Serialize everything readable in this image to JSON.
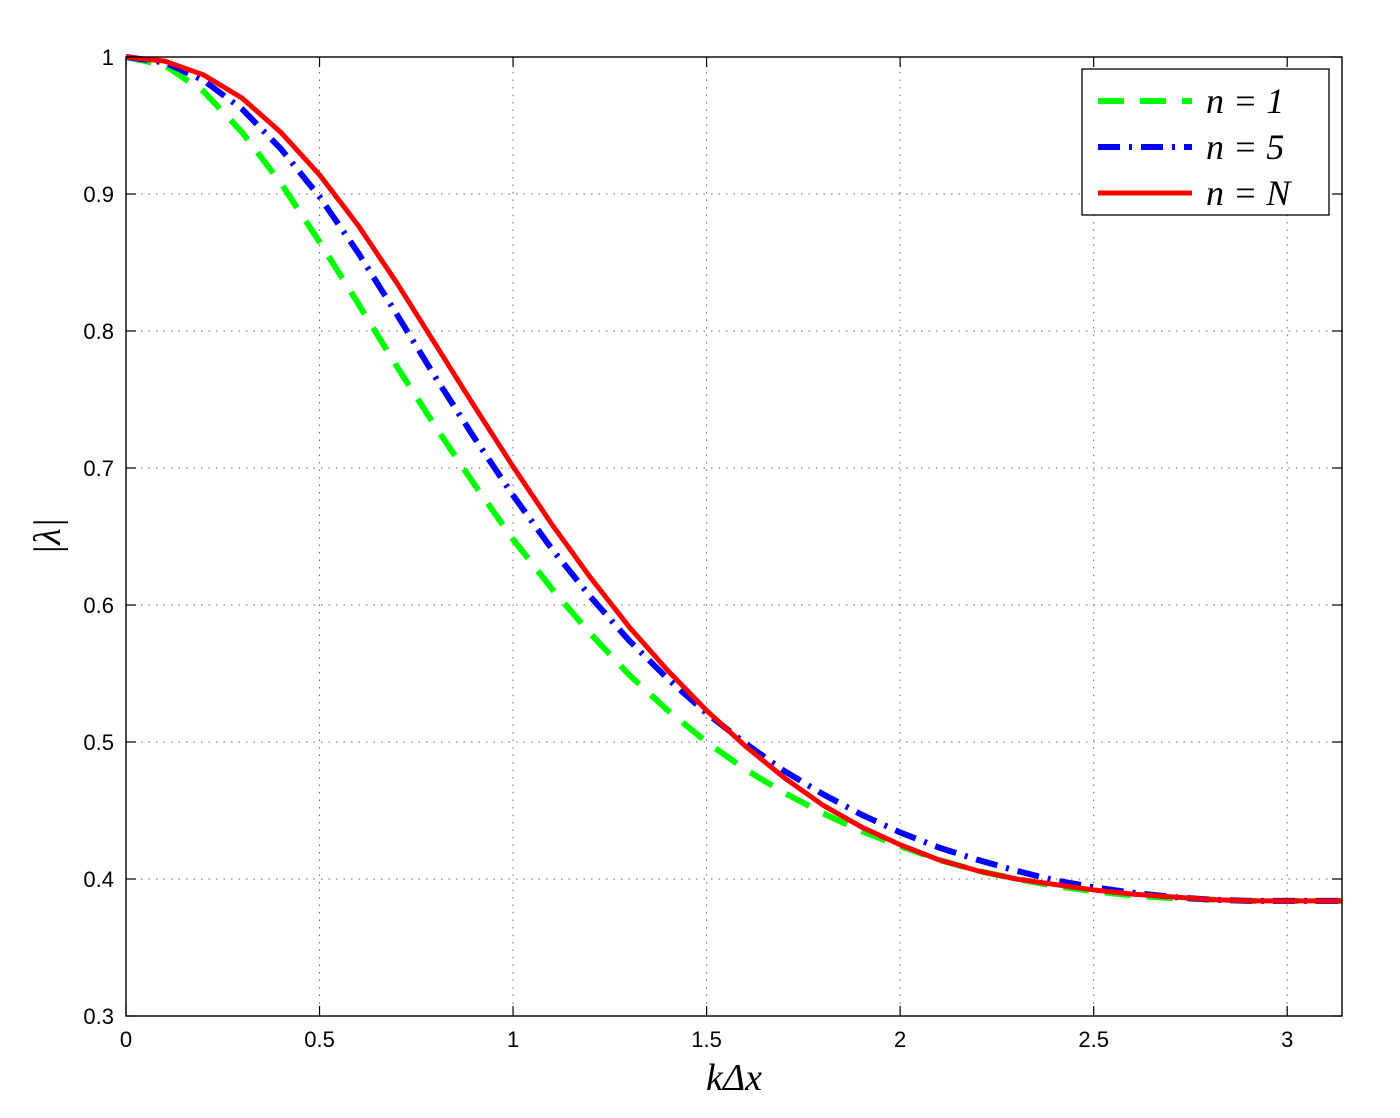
{
  "chart_data": {
    "type": "line",
    "xlabel": "kΔx",
    "ylabel": "|λ|",
    "xlim": [
      0,
      3.1416
    ],
    "ylim": [
      0.3,
      1.0
    ],
    "xticks": [
      0,
      0.5,
      1,
      1.5,
      2,
      2.5,
      3
    ],
    "xtick_labels": [
      "0",
      "0.5",
      "1",
      "1.5",
      "2",
      "2.5",
      "3"
    ],
    "yticks": [
      0.3,
      0.4,
      0.5,
      0.6,
      0.7,
      0.8,
      0.9,
      1.0
    ],
    "ytick_labels": [
      "0.3",
      "0.4",
      "0.5",
      "0.6",
      "0.7",
      "0.8",
      "0.9",
      "1"
    ],
    "grid": true,
    "legend_position": "top-right",
    "x": [
      0,
      0.1,
      0.2,
      0.3,
      0.4,
      0.5,
      0.6,
      0.7,
      0.8,
      0.9,
      1.0,
      1.1,
      1.2,
      1.3,
      1.4,
      1.5,
      1.6,
      1.7,
      1.8,
      1.9,
      2.0,
      2.1,
      2.2,
      2.3,
      2.4,
      2.5,
      2.6,
      2.7,
      2.8,
      2.9,
      3.0,
      3.1416
    ],
    "series": [
      {
        "name": "n = 1",
        "color": "#00ff00",
        "dash": "dashed",
        "values": [
          1.0,
          0.994,
          0.975,
          0.945,
          0.908,
          0.865,
          0.82,
          0.774,
          0.73,
          0.688,
          0.648,
          0.612,
          0.579,
          0.549,
          0.523,
          0.5,
          0.48,
          0.463,
          0.448,
          0.435,
          0.424,
          0.414,
          0.406,
          0.4,
          0.395,
          0.391,
          0.388,
          0.386,
          0.385,
          0.384,
          0.384,
          0.384
        ]
      },
      {
        "name": "n = 5",
        "color": "#0000ff",
        "dash": "dash-dot",
        "values": [
          1.0,
          0.996,
          0.983,
          0.962,
          0.933,
          0.898,
          0.857,
          0.812,
          0.766,
          0.722,
          0.68,
          0.641,
          0.606,
          0.574,
          0.546,
          0.521,
          0.499,
          0.479,
          0.462,
          0.447,
          0.434,
          0.423,
          0.414,
          0.406,
          0.399,
          0.394,
          0.39,
          0.387,
          0.385,
          0.384,
          0.384,
          0.384
        ]
      },
      {
        "name": "n = N",
        "color": "#ff0000",
        "dash": "solid",
        "values": [
          1.0,
          0.997,
          0.987,
          0.97,
          0.945,
          0.914,
          0.877,
          0.835,
          0.79,
          0.745,
          0.701,
          0.659,
          0.62,
          0.584,
          0.552,
          0.523,
          0.497,
          0.474,
          0.454,
          0.438,
          0.425,
          0.414,
          0.406,
          0.4,
          0.396,
          0.392,
          0.389,
          0.387,
          0.385,
          0.384,
          0.384,
          0.384
        ]
      }
    ]
  }
}
